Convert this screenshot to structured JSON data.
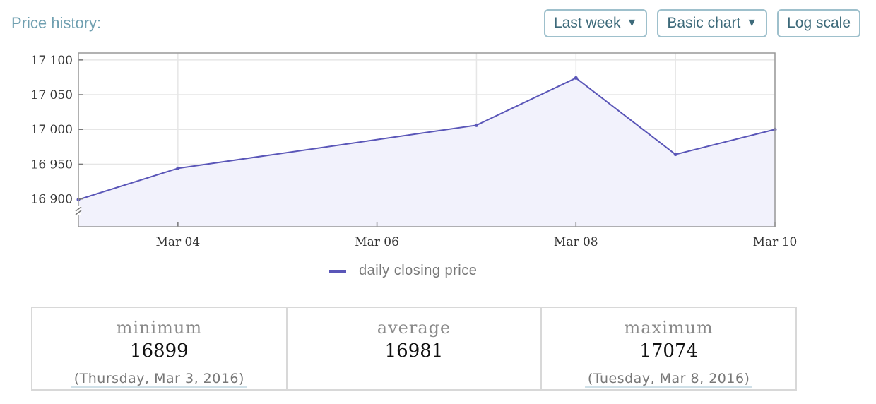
{
  "header": {
    "title": "Price history:"
  },
  "controls": {
    "range": {
      "label": "Last week",
      "caret": "▼"
    },
    "chart_type": {
      "label": "Basic chart",
      "caret": "▼"
    },
    "log_scale": {
      "label": "Log scale"
    }
  },
  "chart_data": {
    "type": "area",
    "x": [
      "2016-03-03",
      "2016-03-04",
      "2016-03-07",
      "2016-03-08",
      "2016-03-09",
      "2016-03-10"
    ],
    "series": [
      {
        "name": "daily closing price",
        "values": [
          16899,
          16944,
          17006,
          17074,
          16964,
          17000
        ]
      }
    ],
    "xticks": [
      "2016-03-04",
      "2016-03-06",
      "2016-03-08",
      "2016-03-10"
    ],
    "xtick_labels": [
      "Mar 04",
      "Mar 06",
      "Mar 08",
      "Mar 10"
    ],
    "xlim": [
      "2016-03-03",
      "2016-03-10"
    ],
    "yticks": [
      16900,
      16950,
      17000,
      17050,
      17100
    ],
    "ytick_labels": [
      "16 900",
      "16 950",
      "17 000",
      "17 050",
      "17 100"
    ],
    "ylim": [
      16860,
      17110
    ],
    "grid": true,
    "legend": "bottom-center",
    "color": "#5a56b8",
    "fill_color": "#f2f2fc"
  },
  "legend": {
    "label": "daily closing price"
  },
  "stats": {
    "minimum": {
      "label": "minimum",
      "value": "16899",
      "date": "(Thursday, Mar 3, 2016)"
    },
    "average": {
      "label": "average",
      "value": "16981"
    },
    "maximum": {
      "label": "maximum",
      "value": "17074",
      "date": "(Tuesday, Mar 8, 2016)"
    }
  }
}
